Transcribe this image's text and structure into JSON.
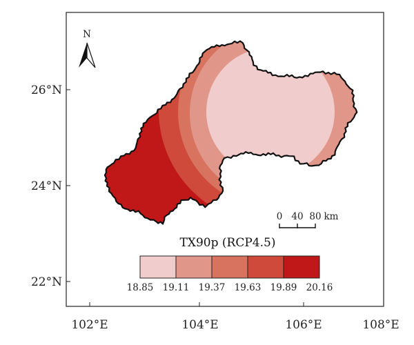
{
  "map": {
    "title": "TX90p (RCP4.5)",
    "x_ticks": [
      "102°E",
      "104°E",
      "106°E",
      "108°E"
    ],
    "y_ticks": [
      "26°N",
      "24°N",
      "22°N"
    ],
    "north_arrow": {
      "label": "N",
      "icon": "north-arrow-icon"
    },
    "scale_bar": {
      "labels": [
        "0",
        "40",
        "80"
      ],
      "unit": "km"
    },
    "legend": {
      "breaks": [
        "18.85",
        "19.11",
        "19.37",
        "19.63",
        "19.89",
        "20.16"
      ],
      "colors": [
        "#f1cccc",
        "#e1968a",
        "#d8735f",
        "#cf4a3a",
        "#c01818"
      ]
    },
    "region_colors": [
      "#f1cccc",
      "#e1968a",
      "#d8735f",
      "#cf4a3a",
      "#c01818"
    ],
    "outline_color": "#111111"
  }
}
